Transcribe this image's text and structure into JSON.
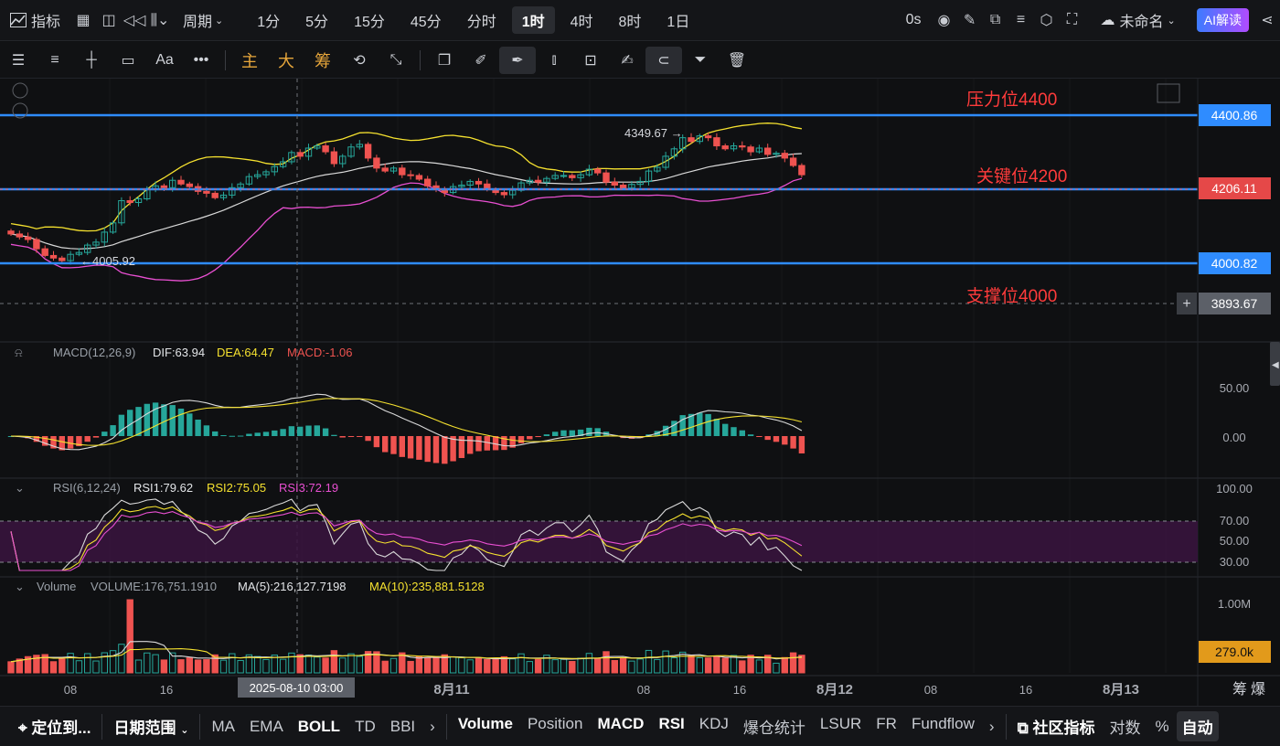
{
  "topbar": {
    "indicator_label": "指标",
    "period_label": "周期",
    "intervals": [
      "1分",
      "5分",
      "15分",
      "45分",
      "分时",
      "1时",
      "4时",
      "8时",
      "1日"
    ],
    "active_interval": "1时",
    "timer": "0s",
    "workspace": "未命名",
    "ai_button": "AI解读"
  },
  "toolbar": {
    "main_label": "主",
    "big_label": "大",
    "chip_label": "筹",
    "font_label": "Aa"
  },
  "annotations": {
    "resistance": "压力位4400",
    "key": "关键位4200",
    "support": "支撑位4000",
    "high_label": "4349.67 →",
    "low_label": "←4005.92"
  },
  "price_tags": {
    "line_4400": "4400.86",
    "current": "4206.11",
    "line_4000": "4000.82",
    "crosshair": "3893.67"
  },
  "macd": {
    "title": "MACD(12,26,9)",
    "dif": "DIF:63.94",
    "dea": "DEA:64.47",
    "macd": "MACD:-1.06",
    "ticks": [
      "50.00",
      "0.00"
    ]
  },
  "rsi": {
    "title": "RSI(6,12,24)",
    "rsi1": "RSI1:79.62",
    "rsi2": "RSI2:75.05",
    "rsi3": "RSI3:72.19",
    "ticks": [
      "100.00",
      "70.00",
      "50.00",
      "30.00"
    ]
  },
  "volume": {
    "title": "Volume",
    "vol": "VOLUME:176,751.1910",
    "ma5": "MA(5):216,127.7198",
    "ma10": "MA(10):235,881.5128",
    "tick_top": "1.00M",
    "current_tag": "279.0k"
  },
  "time_axis": {
    "labels": [
      "08",
      "16",
      "8月11",
      "08",
      "16",
      "8月12",
      "08",
      "16",
      "8月13"
    ],
    "crosshair_time": "2025-08-10 03:00",
    "right_labels": [
      "筹",
      "爆"
    ]
  },
  "bottombar": {
    "locate": "定位到...",
    "range": "日期范围",
    "main_indicators": [
      "MA",
      "EMA",
      "BOLL",
      "TD",
      "BBI"
    ],
    "sub_indicators": [
      "Volume",
      "Position",
      "MACD",
      "RSI",
      "KDJ",
      "爆仓统计",
      "LSUR",
      "FR",
      "Fundflow"
    ],
    "community": "社区指标",
    "log": "对数",
    "percent": "%",
    "auto": "自动"
  },
  "colors": {
    "up": "#26a69a",
    "down": "#ef5350",
    "blue_line": "#2f8cff",
    "annotation": "#ff3b3b",
    "boll_upper": "#f5e12f",
    "boll_mid": "#d9d9d9",
    "boll_lower": "#e84fd1"
  },
  "chart_data": {
    "type": "candlestick",
    "price_axis_range": [
      3860,
      4480
    ],
    "horizontal_levels": [
      4400.86,
      4206.11,
      4000.82
    ],
    "candles_close": [
      4080,
      4072,
      4065,
      4040,
      4022,
      4015,
      4008,
      4025,
      4030,
      4050,
      4058,
      4085,
      4110,
      4170,
      4165,
      4175,
      4200,
      4210,
      4205,
      4225,
      4215,
      4208,
      4195,
      4190,
      4178,
      4185,
      4205,
      4215,
      4235,
      4240,
      4248,
      4262,
      4275,
      4300,
      4290,
      4312,
      4318,
      4302,
      4270,
      4290,
      4315,
      4322,
      4285,
      4258,
      4250,
      4258,
      4240,
      4238,
      4228,
      4210,
      4202,
      4192,
      4208,
      4212,
      4222,
      4215,
      4200,
      4192,
      4186,
      4198,
      4218,
      4225,
      4220,
      4230,
      4238,
      4238,
      4232,
      4240,
      4255,
      4245,
      4220,
      4212,
      4204,
      4214,
      4222,
      4250,
      4260,
      4290,
      4310,
      4340,
      4330,
      4345,
      4340,
      4318,
      4310,
      4318,
      4315,
      4302,
      4312,
      4295,
      4298,
      4285,
      4265,
      4240
    ],
    "volume_label_values": [
      176751.191,
      216127.7198,
      235881.5128
    ]
  }
}
